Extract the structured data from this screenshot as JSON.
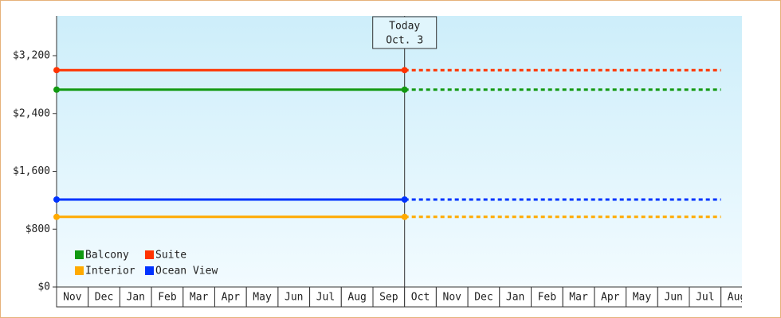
{
  "chart_data": {
    "type": "line",
    "categories": [
      "Nov",
      "Dec",
      "Jan",
      "Feb",
      "Mar",
      "Apr",
      "May",
      "Jun",
      "Jul",
      "Aug",
      "Sep",
      "Oct",
      "Nov",
      "Dec",
      "Jan",
      "Feb",
      "Mar",
      "Apr",
      "May",
      "Jun",
      "Jul",
      "Aug"
    ],
    "series": [
      {
        "name": "Balcony",
        "color": "#119911",
        "values": [
          2730,
          2730,
          2730,
          2730,
          2730,
          2730,
          2730,
          2730,
          2730,
          2730,
          2730,
          2730,
          2730,
          2730,
          2730,
          2730,
          2730,
          2730,
          2730,
          2730,
          2730,
          2730
        ]
      },
      {
        "name": "Suite",
        "color": "#ff3300",
        "values": [
          3000,
          3000,
          3000,
          3000,
          3000,
          3000,
          3000,
          3000,
          3000,
          3000,
          3000,
          3000,
          3000,
          3000,
          3000,
          3000,
          3000,
          3000,
          3000,
          3000,
          3000,
          3000
        ]
      },
      {
        "name": "Interior",
        "color": "#ffaa00",
        "values": [
          970,
          970,
          970,
          970,
          970,
          970,
          970,
          970,
          970,
          970,
          970,
          970,
          970,
          970,
          970,
          970,
          970,
          970,
          970,
          970,
          970,
          970
        ]
      },
      {
        "name": "Ocean View",
        "color": "#0033ff",
        "values": [
          1210,
          1210,
          1210,
          1210,
          1210,
          1210,
          1210,
          1210,
          1210,
          1210,
          1210,
          1210,
          1210,
          1210,
          1210,
          1210,
          1210,
          1210,
          1210,
          1210,
          1210,
          1210
        ]
      }
    ],
    "annotation": {
      "text": [
        "Today",
        "Oct. 3"
      ],
      "category": "Oct"
    },
    "ylim": [
      0,
      3750
    ],
    "yticks": [
      {
        "value": 0,
        "label": "$0"
      },
      {
        "value": 800,
        "label": "$800"
      },
      {
        "value": 1600,
        "label": "$1,600"
      },
      {
        "value": 2400,
        "label": "$2,400"
      },
      {
        "value": 3200,
        "label": "$3,200"
      }
    ],
    "legend": "lower left"
  }
}
